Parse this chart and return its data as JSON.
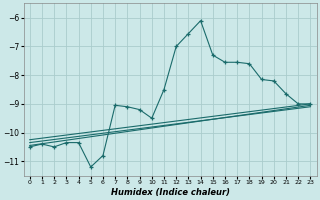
{
  "xlabel": "Humidex (Indice chaleur)",
  "background_color": "#cce8e8",
  "grid_color": "#aacccc",
  "line_color": "#1a6b6b",
  "xlim": [
    -0.5,
    23.5
  ],
  "ylim": [
    -11.5,
    -5.5
  ],
  "yticks": [
    -11,
    -10,
    -9,
    -8,
    -7,
    -6
  ],
  "xticks": [
    0,
    1,
    2,
    3,
    4,
    5,
    6,
    7,
    8,
    9,
    10,
    11,
    12,
    13,
    14,
    15,
    16,
    17,
    18,
    19,
    20,
    21,
    22,
    23
  ],
  "xtick_labels": [
    "0",
    "1",
    "2",
    "3",
    "4",
    "5",
    "6",
    "7",
    "8",
    "9",
    "10",
    "11",
    "12",
    "13",
    "14",
    "15",
    "16",
    "17",
    "18",
    "19",
    "20",
    "21",
    "22",
    "23"
  ],
  "series1_x": [
    0,
    1,
    2,
    3,
    4,
    5,
    6,
    7,
    8,
    9,
    10,
    11,
    12,
    13,
    14,
    15,
    16,
    17,
    18,
    19,
    20,
    21,
    22,
    23
  ],
  "series1_y": [
    -10.5,
    -10.4,
    -10.5,
    -10.35,
    -10.35,
    -11.2,
    -10.8,
    -9.05,
    -9.1,
    -9.2,
    -9.5,
    -8.5,
    -7.0,
    -6.55,
    -6.1,
    -7.3,
    -7.55,
    -7.55,
    -7.6,
    -8.15,
    -8.2,
    -8.65,
    -9.0,
    -9.0
  ],
  "line2_x": [
    0,
    23
  ],
  "line2_y": [
    -10.45,
    -9.05
  ],
  "line3_x": [
    0,
    23
  ],
  "line3_y": [
    -10.35,
    -9.1
  ],
  "line4_x": [
    0,
    23
  ],
  "line4_y": [
    -10.25,
    -9.0
  ]
}
